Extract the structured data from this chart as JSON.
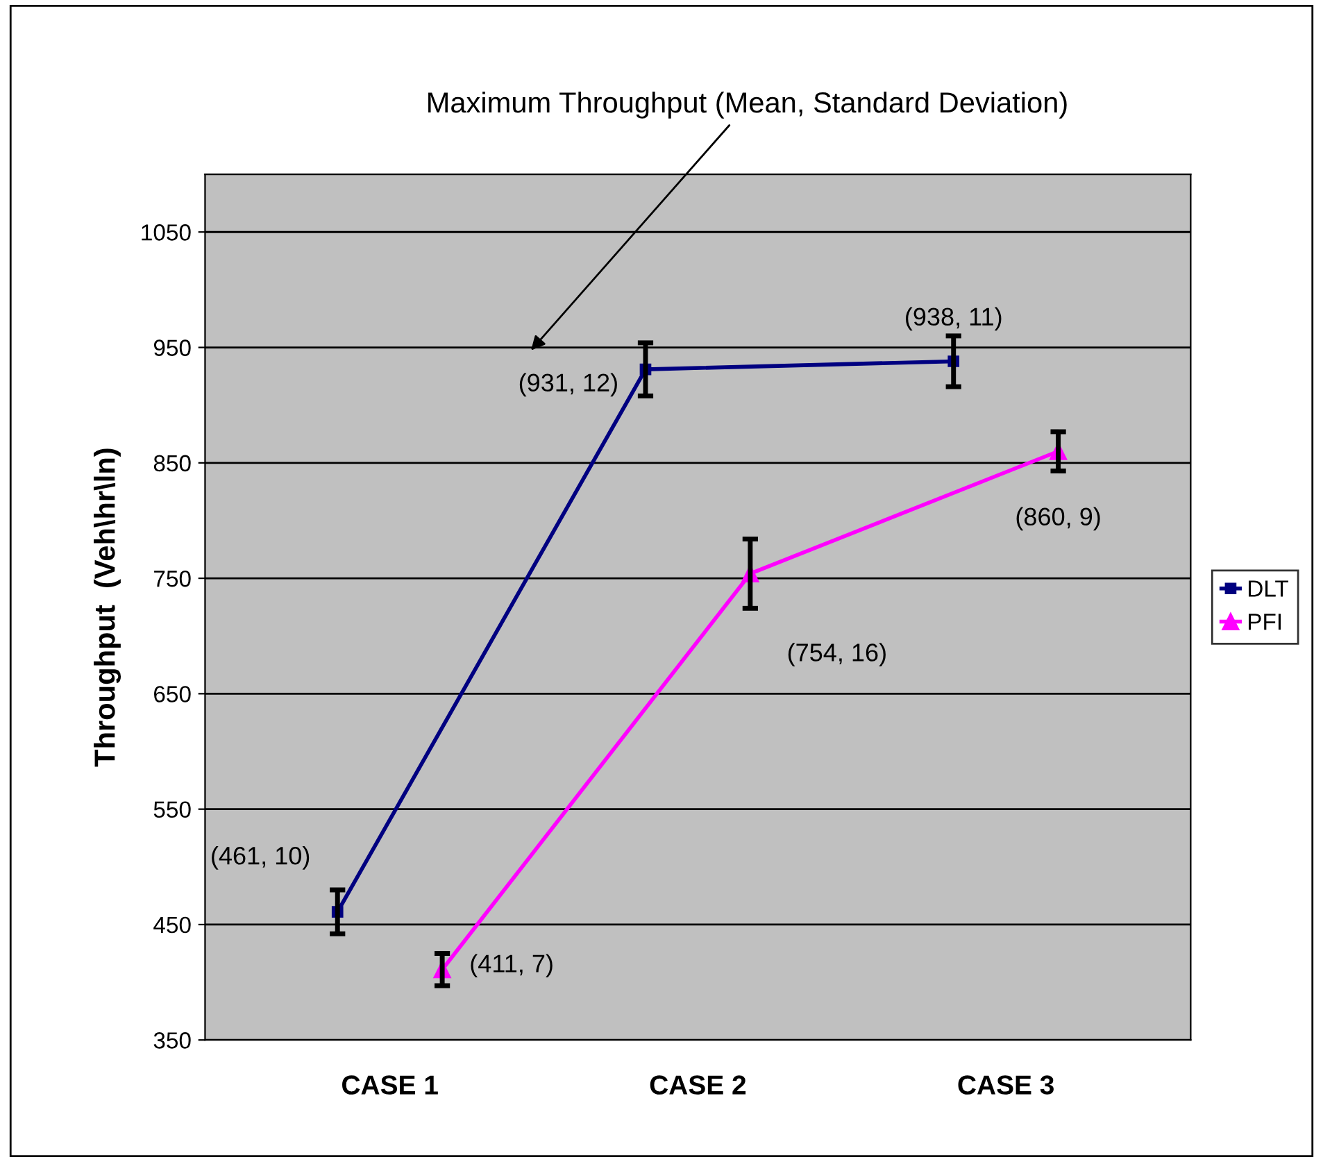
{
  "chart_data": {
    "type": "line",
    "categories": [
      "CASE 1",
      "CASE 2",
      "CASE 3"
    ],
    "ylabel": "Throughput  (Veh\\hr\\ln)",
    "ylim": [
      350,
      1100
    ],
    "yticks": [
      350,
      450,
      550,
      650,
      750,
      850,
      950,
      1050
    ],
    "grid": "y",
    "legend": "right",
    "series": [
      {
        "name": "DLT",
        "color": "#000080",
        "marker": "square",
        "values": [
          461,
          931,
          938
        ],
        "errors": [
          19,
          23,
          22
        ],
        "value_labels": [
          "(461, 10)",
          "(931, 12)",
          "(938, 11)"
        ]
      },
      {
        "name": "PFI",
        "color": "#ff00ff",
        "marker": "triangle",
        "values": [
          411,
          754,
          860
        ],
        "errors": [
          14,
          30,
          17
        ],
        "value_labels": [
          "(411, 7)",
          "(754, 16)",
          "(860, 9)"
        ]
      }
    ],
    "annotations": [
      "Maximum Throughput (Mean, Standard Deviation)"
    ]
  }
}
